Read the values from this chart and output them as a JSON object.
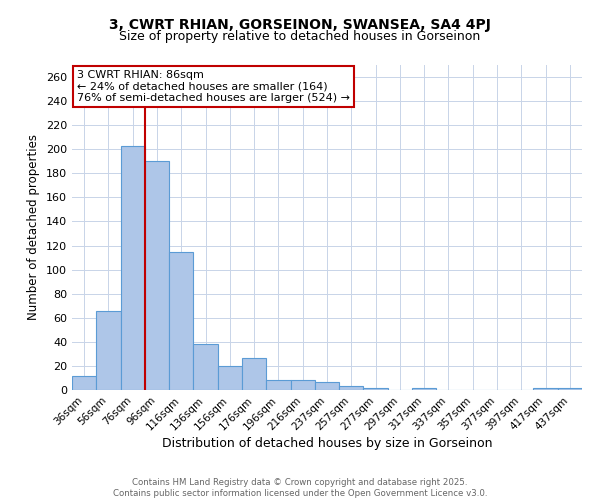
{
  "title_line1": "3, CWRT RHIAN, GORSEINON, SWANSEA, SA4 4PJ",
  "title_line2": "Size of property relative to detached houses in Gorseinon",
  "xlabel": "Distribution of detached houses by size in Gorseinon",
  "ylabel": "Number of detached properties",
  "categories": [
    "36sqm",
    "56sqm",
    "76sqm",
    "96sqm",
    "116sqm",
    "136sqm",
    "156sqm",
    "176sqm",
    "196sqm",
    "216sqm",
    "237sqm",
    "257sqm",
    "277sqm",
    "297sqm",
    "317sqm",
    "337sqm",
    "357sqm",
    "377sqm",
    "397sqm",
    "417sqm",
    "437sqm"
  ],
  "values": [
    12,
    66,
    203,
    190,
    115,
    38,
    20,
    27,
    8,
    8,
    7,
    3,
    2,
    0,
    2,
    0,
    0,
    0,
    0,
    2,
    2
  ],
  "bar_color": "#aec6e8",
  "bar_edge_color": "#5b9bd5",
  "bar_width": 1.0,
  "vline_color": "#c00000",
  "ylim": [
    0,
    270
  ],
  "yticks": [
    0,
    20,
    40,
    60,
    80,
    100,
    120,
    140,
    160,
    180,
    200,
    220,
    240,
    260
  ],
  "annotation_text": "3 CWRT RHIAN: 86sqm\n← 24% of detached houses are smaller (164)\n76% of semi-detached houses are larger (524) →",
  "annotation_box_color": "#ffffff",
  "annotation_box_edge_color": "#c00000",
  "footer_line1": "Contains HM Land Registry data © Crown copyright and database right 2025.",
  "footer_line2": "Contains public sector information licensed under the Open Government Licence v3.0.",
  "background_color": "#ffffff",
  "grid_color": "#c8d4e8",
  "vline_x_index": 2.5
}
